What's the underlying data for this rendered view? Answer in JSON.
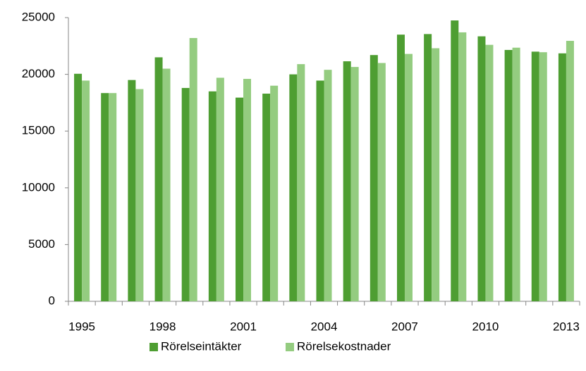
{
  "chart_data": {
    "type": "bar",
    "categories": [
      "1995",
      null,
      null,
      "1998",
      null,
      null,
      "2001",
      null,
      null,
      "2004",
      null,
      null,
      "2007",
      null,
      null,
      "2010",
      null,
      null,
      "2013"
    ],
    "series": [
      {
        "name": "Rörelseintäkter",
        "color": "#4e9e32",
        "values": [
          20050,
          18350,
          19500,
          21500,
          18800,
          18500,
          17950,
          18300,
          20000,
          19450,
          21150,
          21700,
          23500,
          23550,
          24750,
          23350,
          22150,
          22000,
          21850
        ]
      },
      {
        "name": "Rörelsekostnader",
        "color": "#94cc80",
        "values": [
          19450,
          18350,
          18700,
          20500,
          23200,
          19700,
          19600,
          19000,
          20900,
          20400,
          20650,
          21000,
          21800,
          22300,
          23700,
          22600,
          22350,
          21950,
          22950
        ]
      }
    ],
    "ylim": [
      0,
      25000
    ],
    "yticks": [
      0,
      5000,
      10000,
      15000,
      20000,
      25000
    ],
    "legend": "bottom"
  }
}
